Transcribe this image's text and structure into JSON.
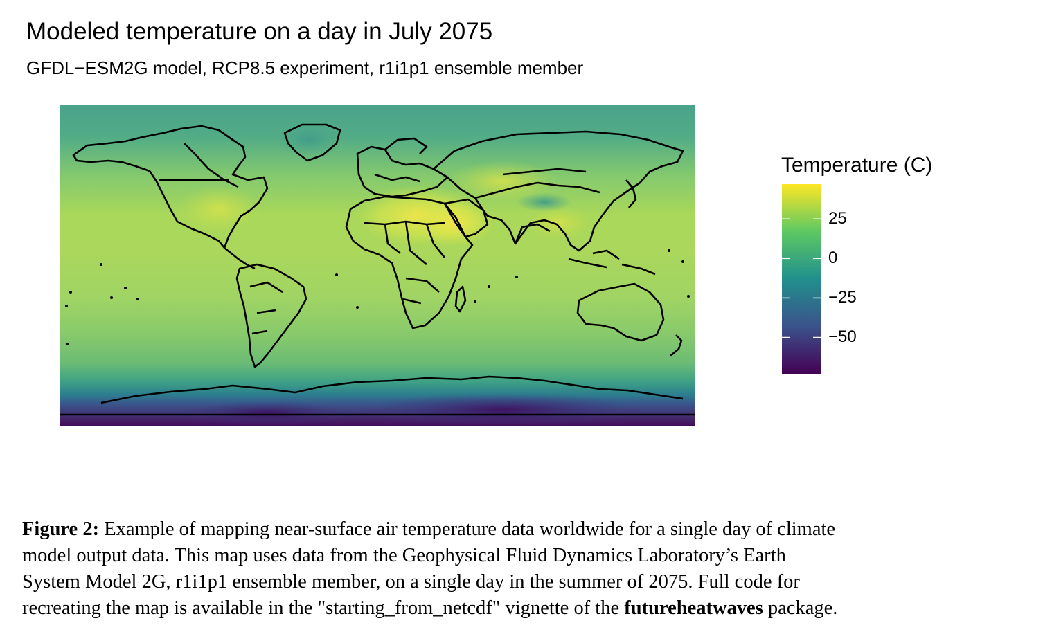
{
  "plot": {
    "title": "Modeled temperature on a day in July 2075",
    "subtitle": "GFDL−ESM2G model, RCP8.5 experiment, r1i1p1 ensemble member"
  },
  "legend": {
    "title": "Temperature (C)",
    "ticks": [
      {
        "label": "25",
        "value": 25
      },
      {
        "label": "0",
        "value": 0
      },
      {
        "label": "−25",
        "value": -25
      },
      {
        "label": "−50",
        "value": -50
      }
    ],
    "range": [
      -73,
      47
    ],
    "colors": [
      "#440154",
      "#3b528b",
      "#21908d",
      "#5dc863",
      "#fde725"
    ]
  },
  "map_data": {
    "type": "raster-heatmap",
    "projection": "equirectangular",
    "colorscale": "viridis",
    "extent": {
      "lon": [
        -180,
        180
      ],
      "lat": [
        -90,
        90
      ]
    },
    "land_hot_spots": [
      "Sahara",
      "Arabian Peninsula",
      "Central Asia"
    ],
    "cold_region": "Antarctica"
  },
  "caption": {
    "label": "Figure 2:",
    "line1": "Example of mapping near-surface air temperature data worldwide for a single day of climate",
    "line2": "model output data.  This map uses data from the Geophysical Fluid Dynamics Laboratory’s Earth",
    "line3": "System Model 2G, r1i1p1 ensemble member, on a single day in the summer of 2075.  Full code for",
    "line4_before": "recreating the map is available in the \"starting_from_netcdf\" vignette of the ",
    "package_name": "futureheatwaves",
    "line4_after": " package."
  }
}
